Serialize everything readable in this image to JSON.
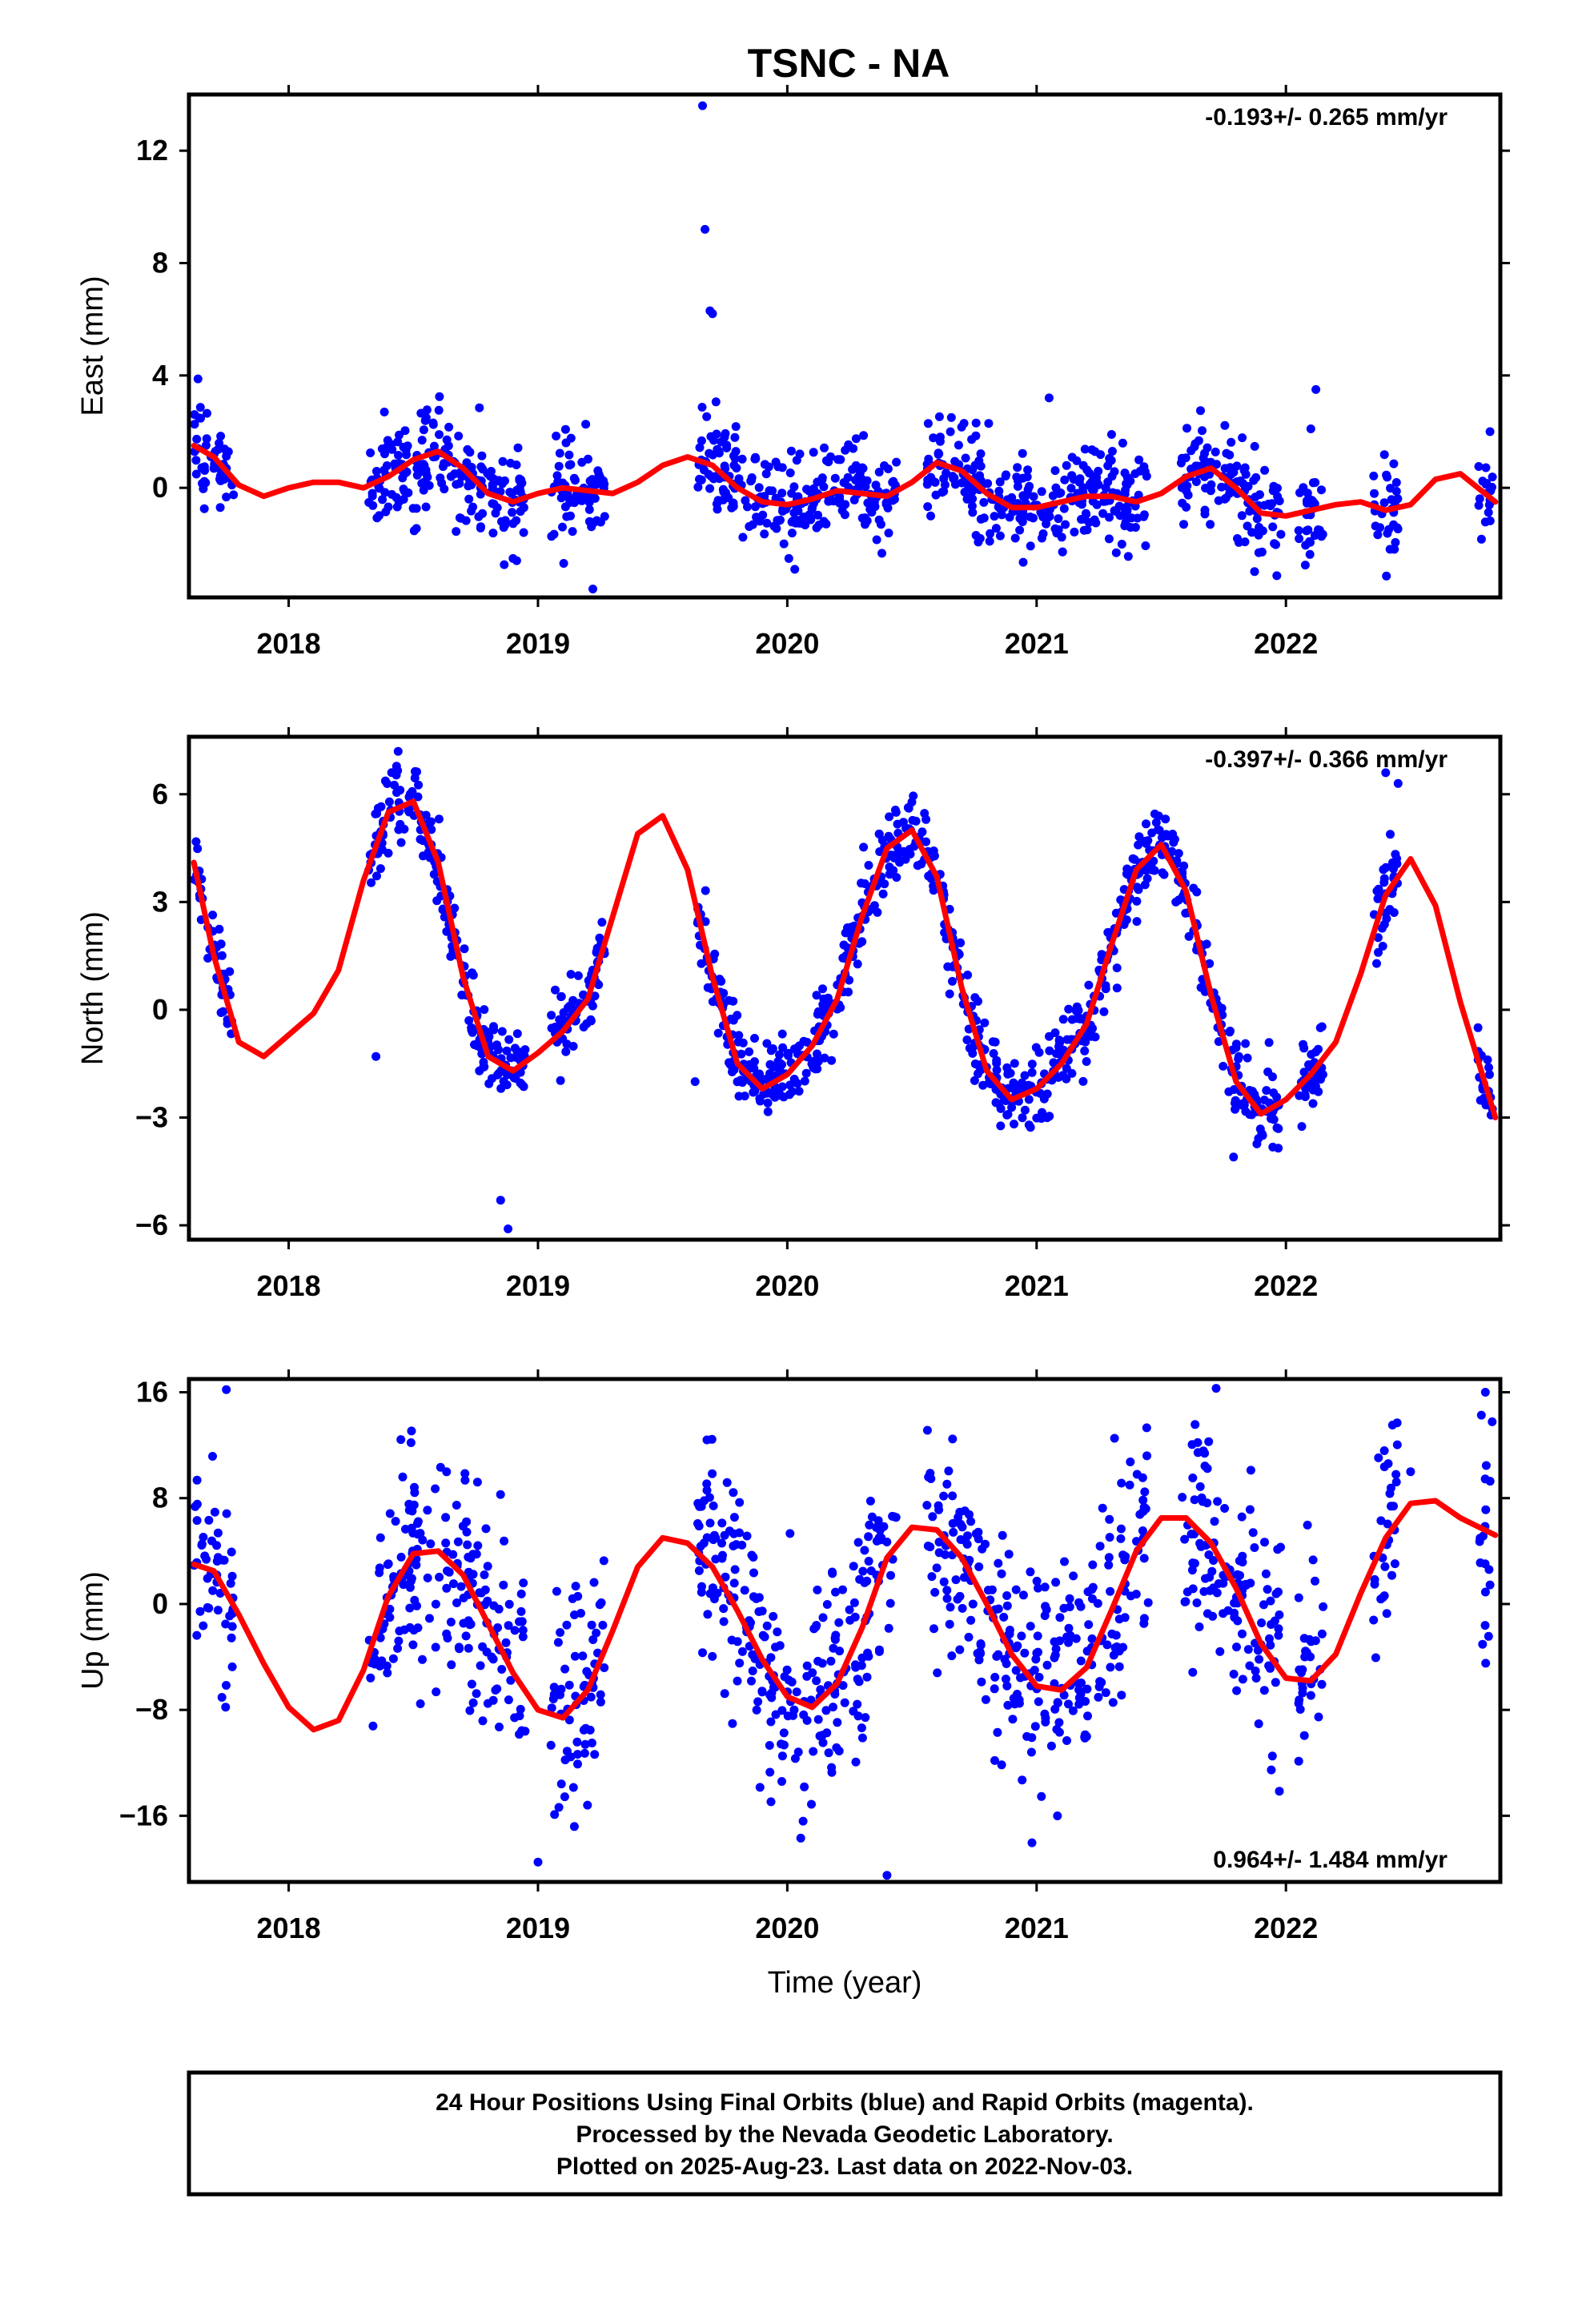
{
  "title": "TSNC - NA",
  "colors": {
    "points": "#0000ff",
    "fit": "#ff0000",
    "frame": "#000000"
  },
  "chart_data": [
    {
      "type": "scatter",
      "ylabel": "East (mm)",
      "xlabel": "",
      "rate": "-0.193+/- 0.265 mm/yr",
      "xlim": [
        2017.6,
        2022.86
      ],
      "ylim": [
        -3.9,
        14.0
      ],
      "yticks": [
        0,
        4,
        8,
        12
      ],
      "xticks": [
        2018,
        2019,
        2020,
        2021,
        2022
      ],
      "tick_labels_x": [
        "2018",
        "2019",
        "2020",
        "2021",
        "2022"
      ],
      "tick_labels_y": [
        "0",
        "4",
        "8",
        "12"
      ],
      "segments": [
        [
          2017.62,
          2017.78
        ],
        [
          2018.32,
          2018.62
        ],
        [
          2018.62,
          2018.95
        ],
        [
          2019.05,
          2019.27
        ],
        [
          2019.64,
          2020.12
        ],
        [
          2020.12,
          2020.44
        ],
        [
          2020.56,
          2020.95
        ],
        [
          2020.95,
          2021.45
        ],
        [
          2021.58,
          2021.82
        ],
        [
          2021.82,
          2021.98
        ],
        [
          2022.05,
          2022.15
        ],
        [
          2022.35,
          2022.45
        ],
        [
          2022.77,
          2022.83
        ]
      ],
      "noise": 0.85,
      "outliers": [
        [
          2019.66,
          13.6
        ],
        [
          2019.67,
          9.2
        ],
        [
          2019.69,
          6.3
        ],
        [
          2019.7,
          6.2
        ],
        [
          2022.12,
          3.5
        ],
        [
          2021.05,
          3.2
        ],
        [
          2022.1,
          2.1
        ],
        [
          2019.22,
          -3.6
        ],
        [
          2020.03,
          -2.9
        ]
      ],
      "fit_x": [
        2017.62,
        2017.7,
        2017.8,
        2017.9,
        2018.0,
        2018.1,
        2018.2,
        2018.3,
        2018.4,
        2018.5,
        2018.6,
        2018.7,
        2018.8,
        2018.9,
        2019.0,
        2019.1,
        2019.2,
        2019.3,
        2019.4,
        2019.5,
        2019.6,
        2019.7,
        2019.8,
        2019.9,
        2020.0,
        2020.1,
        2020.2,
        2020.3,
        2020.4,
        2020.5,
        2020.6,
        2020.7,
        2020.8,
        2020.9,
        2021.0,
        2021.1,
        2021.2,
        2021.3,
        2021.4,
        2021.5,
        2021.6,
        2021.7,
        2021.8,
        2021.9,
        2022.0,
        2022.1,
        2022.2,
        2022.3,
        2022.4,
        2022.5,
        2022.6,
        2022.7,
        2022.84
      ],
      "fit_y": [
        1.5,
        1.1,
        0.1,
        -0.3,
        0.0,
        0.2,
        0.2,
        0.0,
        0.4,
        1.0,
        1.3,
        0.7,
        -0.2,
        -0.5,
        -0.2,
        0.0,
        -0.1,
        -0.2,
        0.2,
        0.8,
        1.1,
        0.8,
        0.0,
        -0.5,
        -0.6,
        -0.4,
        -0.1,
        -0.2,
        -0.3,
        0.2,
        0.9,
        0.6,
        -0.2,
        -0.7,
        -0.7,
        -0.5,
        -0.3,
        -0.3,
        -0.5,
        -0.2,
        0.4,
        0.7,
        0.0,
        -0.9,
        -1.0,
        -0.8,
        -0.6,
        -0.5,
        -0.8,
        -0.6,
        0.3,
        0.5,
        -0.5
      ]
    },
    {
      "type": "scatter",
      "ylabel": "North (mm)",
      "xlabel": "",
      "rate": "-0.397+/- 0.366 mm/yr",
      "xlim": [
        2017.6,
        2022.86
      ],
      "ylim": [
        -6.4,
        7.6
      ],
      "yticks": [
        -6,
        -3,
        0,
        3,
        6
      ],
      "xticks": [
        2018,
        2019,
        2020,
        2021,
        2022
      ],
      "tick_labels_x": [
        "2018",
        "2019",
        "2020",
        "2021",
        "2022"
      ],
      "tick_labels_y": [
        "−6",
        "−3",
        "0",
        "3",
        "6"
      ],
      "segments": [
        [
          2017.62,
          2017.78
        ],
        [
          2018.32,
          2018.62
        ],
        [
          2018.62,
          2018.95
        ],
        [
          2019.05,
          2019.27
        ],
        [
          2019.64,
          2020.12
        ],
        [
          2020.12,
          2020.44
        ],
        [
          2020.44,
          2020.56
        ],
        [
          2020.56,
          2020.95
        ],
        [
          2020.95,
          2021.45
        ],
        [
          2021.45,
          2021.58
        ],
        [
          2021.58,
          2021.82
        ],
        [
          2021.82,
          2021.98
        ],
        [
          2022.05,
          2022.15
        ],
        [
          2022.35,
          2022.45
        ],
        [
          2022.77,
          2022.83
        ]
      ],
      "noise": 0.55,
      "outliers": [
        [
          2018.88,
          -6.1
        ],
        [
          2018.85,
          -5.3
        ],
        [
          2022.4,
          6.6
        ],
        [
          2022.45,
          6.3
        ],
        [
          2018.35,
          -1.3
        ],
        [
          2019.63,
          -2.0
        ],
        [
          2021.79,
          -4.1
        ]
      ],
      "fit_x": [
        2017.62,
        2017.7,
        2017.8,
        2017.9,
        2018.0,
        2018.1,
        2018.2,
        2018.3,
        2018.4,
        2018.5,
        2018.6,
        2018.7,
        2018.8,
        2018.9,
        2019.0,
        2019.1,
        2019.2,
        2019.3,
        2019.4,
        2019.5,
        2019.6,
        2019.7,
        2019.8,
        2019.9,
        2020.0,
        2020.1,
        2020.2,
        2020.3,
        2020.4,
        2020.5,
        2020.6,
        2020.7,
        2020.8,
        2020.9,
        2021.0,
        2021.1,
        2021.2,
        2021.3,
        2021.4,
        2021.5,
        2021.6,
        2021.7,
        2021.8,
        2021.9,
        2022.0,
        2022.1,
        2022.2,
        2022.3,
        2022.4,
        2022.5,
        2022.6,
        2022.7,
        2022.84
      ],
      "fit_y": [
        4.1,
        1.5,
        -0.9,
        -1.3,
        -0.7,
        -0.1,
        1.1,
        3.6,
        5.5,
        5.8,
        4.1,
        0.9,
        -1.3,
        -1.7,
        -1.2,
        -0.6,
        0.3,
        2.6,
        4.9,
        5.4,
        3.9,
        0.9,
        -1.5,
        -2.2,
        -1.8,
        -1.0,
        0.3,
        2.6,
        4.5,
        5.0,
        3.7,
        0.6,
        -1.7,
        -2.5,
        -2.2,
        -1.5,
        -0.4,
        1.8,
        3.9,
        4.6,
        3.3,
        0.4,
        -2.0,
        -2.9,
        -2.5,
        -1.8,
        -0.9,
        1.0,
        3.2,
        4.2,
        2.9,
        0.2,
        -3.0
      ]
    },
    {
      "type": "scatter",
      "ylabel": "Up (mm)",
      "xlabel": "Time (year)",
      "rate": "0.964+/- 1.484 mm/yr",
      "xlim": [
        2017.6,
        2022.86
      ],
      "ylim": [
        -21.0,
        17.0
      ],
      "yticks": [
        -16,
        -8,
        0,
        8,
        16
      ],
      "xticks": [
        2018,
        2019,
        2020,
        2021,
        2022
      ],
      "tick_labels_x": [
        "2018",
        "2019",
        "2020",
        "2021",
        "2022"
      ],
      "tick_labels_y": [
        "−16",
        "−8",
        "0",
        "8",
        "16"
      ],
      "segments": [
        [
          2017.62,
          2017.78
        ],
        [
          2018.32,
          2018.62
        ],
        [
          2018.62,
          2018.95
        ],
        [
          2019.05,
          2019.27
        ],
        [
          2019.64,
          2020.12
        ],
        [
          2020.12,
          2020.44
        ],
        [
          2020.56,
          2020.95
        ],
        [
          2020.95,
          2021.45
        ],
        [
          2021.58,
          2021.82
        ],
        [
          2021.82,
          2021.98
        ],
        [
          2022.05,
          2022.15
        ],
        [
          2022.35,
          2022.45
        ],
        [
          2022.77,
          2022.83
        ]
      ],
      "noise": 4.2,
      "outliers": [
        [
          2019.0,
          -19.5
        ],
        [
          2020.4,
          -20.5
        ],
        [
          2021.72,
          16.3
        ],
        [
          2022.8,
          16.0
        ],
        [
          2017.75,
          16.2
        ],
        [
          2022.5,
          10.0
        ]
      ],
      "fit_x": [
        2017.62,
        2017.7,
        2017.8,
        2017.9,
        2018.0,
        2018.1,
        2018.2,
        2018.3,
        2018.4,
        2018.5,
        2018.6,
        2018.7,
        2018.8,
        2018.9,
        2019.0,
        2019.1,
        2019.2,
        2019.3,
        2019.4,
        2019.5,
        2019.6,
        2019.7,
        2019.8,
        2019.9,
        2020.0,
        2020.1,
        2020.2,
        2020.3,
        2020.4,
        2020.5,
        2020.6,
        2020.7,
        2020.8,
        2020.9,
        2021.0,
        2021.1,
        2021.2,
        2021.3,
        2021.4,
        2021.5,
        2021.6,
        2021.7,
        2021.8,
        2021.9,
        2022.0,
        2022.1,
        2022.2,
        2022.3,
        2022.4,
        2022.5,
        2022.6,
        2022.7,
        2022.84
      ],
      "fit_y": [
        3.0,
        2.5,
        -0.8,
        -4.5,
        -7.8,
        -9.5,
        -8.8,
        -5.0,
        0.6,
        3.8,
        4.0,
        2.2,
        -1.5,
        -5.2,
        -8.0,
        -8.6,
        -6.5,
        -2.0,
        2.8,
        5.0,
        4.6,
        2.8,
        -0.5,
        -4.2,
        -7.0,
        -7.8,
        -6.0,
        -1.8,
        3.5,
        5.8,
        5.6,
        3.5,
        0.0,
        -3.8,
        -6.2,
        -6.5,
        -4.8,
        -0.5,
        4.0,
        6.5,
        6.5,
        4.6,
        1.2,
        -3.0,
        -5.6,
        -5.8,
        -3.8,
        0.8,
        5.0,
        7.6,
        7.8,
        6.5,
        5.2
      ]
    }
  ],
  "footer": {
    "line1": "24 Hour Positions Using Final Orbits (blue) and Rapid Orbits (magenta).",
    "line2": "Processed by the Nevada Geodetic Laboratory.",
    "line3": "Plotted on 2025-Aug-23. Last data on 2022-Nov-03."
  }
}
